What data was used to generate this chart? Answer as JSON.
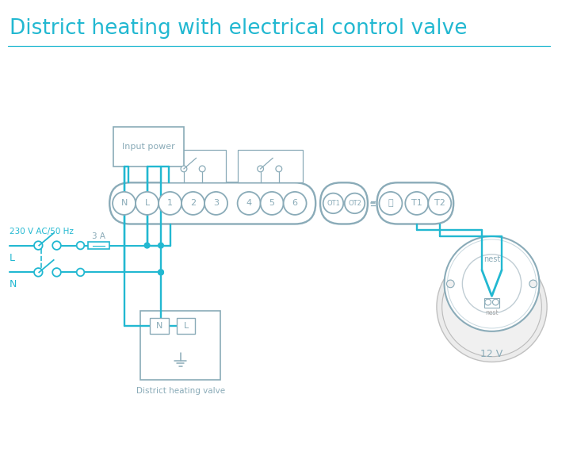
{
  "title": "District heating with electrical control valve",
  "title_color": "#22b8d1",
  "wire_color": "#22b8d1",
  "device_color": "#8aabb8",
  "text_color": "#8aabb8",
  "bg_color": "#ffffff",
  "title_fontsize": 19,
  "input_power_label": "Input power",
  "fuse_label": "3 A",
  "voltage_label": "230 V AC/50 Hz",
  "valve_label": "District heating valve",
  "nest_label": "12 V",
  "terminals_main": [
    "N",
    "L",
    "1",
    "2",
    "3",
    "4",
    "5",
    "6"
  ],
  "terminals_ot": [
    "OT1",
    "OT2"
  ],
  "terminals_t": [
    "⏚",
    "T1",
    "T2"
  ]
}
